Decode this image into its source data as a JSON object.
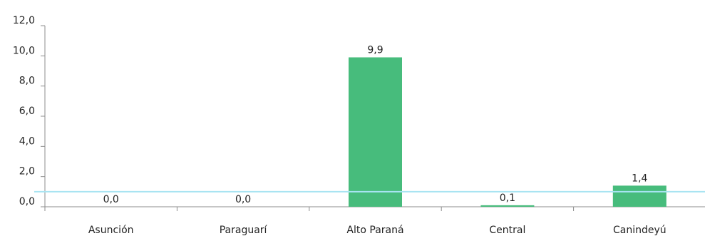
{
  "chart_data": {
    "type": "bar",
    "categories": [
      "Asunción",
      "Paraguarí",
      "Alto Paraná",
      "Central",
      "Canindeyú"
    ],
    "values": [
      0.0,
      0.0,
      9.9,
      0.1,
      1.4
    ],
    "value_labels": [
      "0,0",
      "0,0",
      "9,9",
      "0,1",
      "1,4"
    ],
    "y_ticks": [
      {
        "value": 0,
        "label": "0,0"
      },
      {
        "value": 2,
        "label": "2,0"
      },
      {
        "value": 4,
        "label": "4,0"
      },
      {
        "value": 6,
        "label": "6,0"
      },
      {
        "value": 8,
        "label": "8,0"
      },
      {
        "value": 10,
        "label": "10,0"
      },
      {
        "value": 12,
        "label": "12,0"
      }
    ],
    "ylim": [
      0,
      12
    ],
    "reference_line": {
      "value": 1.0,
      "color": "#a8e4f2"
    },
    "bar_color": "#47bc7c",
    "axis_color": "#8c8c8c",
    "title": "",
    "xlabel": "",
    "ylabel": "",
    "grid": false,
    "legend": "none"
  }
}
